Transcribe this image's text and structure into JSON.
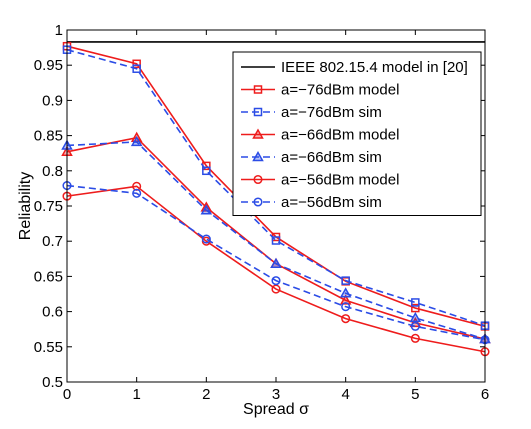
{
  "chart_data": {
    "type": "line",
    "xlabel": "Spread σ",
    "ylabel": "Reliability",
    "xlim": [
      0,
      6
    ],
    "ylim": [
      0.5,
      1.0
    ],
    "xticks": [
      0,
      1,
      2,
      3,
      4,
      5,
      6
    ],
    "yticks": [
      0.5,
      0.55,
      0.6,
      0.65,
      0.7,
      0.75,
      0.8,
      0.85,
      0.9,
      0.95,
      1
    ],
    "ytick_labels": [
      "0.5",
      "0.55",
      "0.6",
      "0.65",
      "0.7",
      "0.75",
      "0.8",
      "0.85",
      "0.9",
      "0.95",
      "1"
    ],
    "grid": false,
    "legend_position": "top-right",
    "x": [
      0,
      1,
      2,
      3,
      4,
      5,
      6
    ],
    "series": [
      {
        "name": "IEEE 802.15.4 model in [20]",
        "color": "#000000",
        "dash": "solid",
        "marker": "none",
        "values": [
          0.983,
          0.983,
          0.983,
          0.983,
          0.983,
          0.983,
          0.983
        ]
      },
      {
        "name": "a=−76dBm model",
        "color": "#ee1c1c",
        "dash": "solid",
        "marker": "square",
        "values": [
          0.977,
          0.952,
          0.807,
          0.706,
          0.643,
          0.605,
          0.579
        ]
      },
      {
        "name": "a=−76dBm sim",
        "color": "#2b4ce6",
        "dash": "dashed",
        "marker": "square",
        "values": [
          0.972,
          0.945,
          0.8,
          0.701,
          0.644,
          0.613,
          0.58
        ]
      },
      {
        "name": "a=−66dBm model",
        "color": "#ee1c1c",
        "dash": "solid",
        "marker": "triangle",
        "values": [
          0.827,
          0.847,
          0.748,
          0.668,
          0.616,
          0.584,
          0.561
        ]
      },
      {
        "name": "a=−66dBm sim",
        "color": "#2b4ce6",
        "dash": "dashed",
        "marker": "triangle",
        "values": [
          0.836,
          0.841,
          0.744,
          0.668,
          0.626,
          0.591,
          0.561
        ]
      },
      {
        "name": "a=−56dBm model",
        "color": "#ee1c1c",
        "dash": "solid",
        "marker": "circle",
        "values": [
          0.764,
          0.778,
          0.7,
          0.632,
          0.59,
          0.562,
          0.543
        ]
      },
      {
        "name": "a=−56dBm sim",
        "color": "#2b4ce6",
        "dash": "dashed",
        "marker": "circle",
        "values": [
          0.779,
          0.768,
          0.703,
          0.644,
          0.607,
          0.579,
          0.56
        ]
      }
    ]
  }
}
